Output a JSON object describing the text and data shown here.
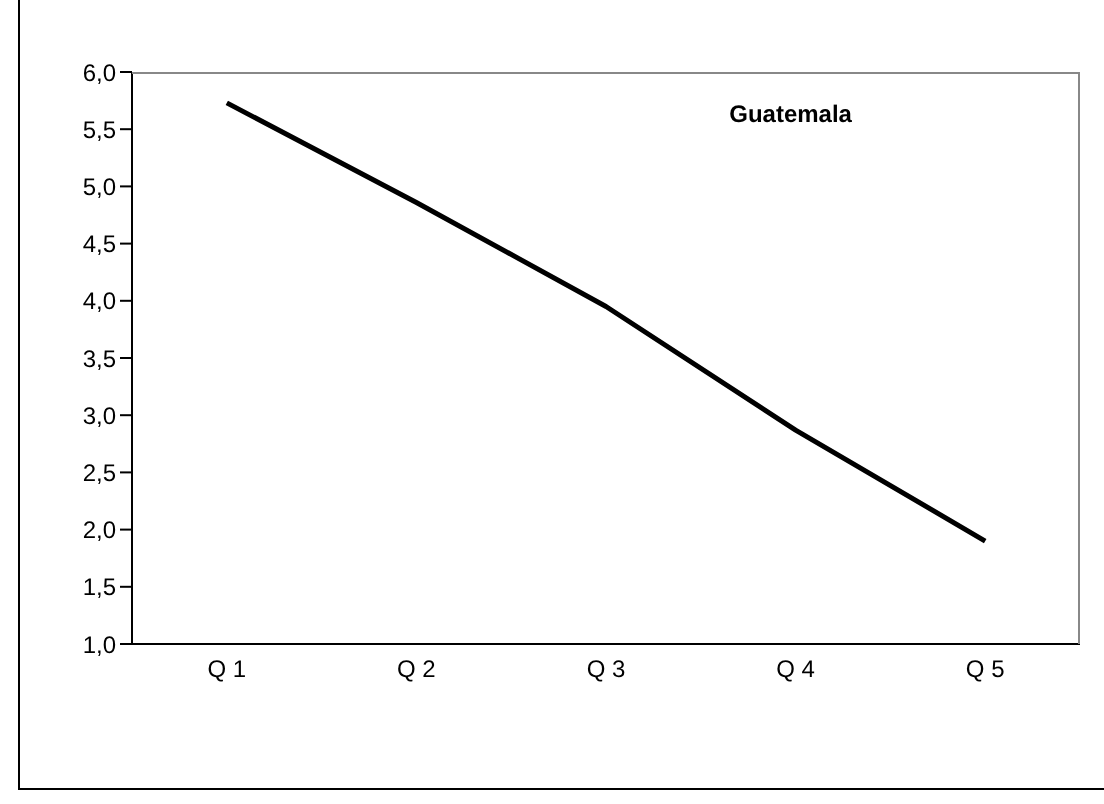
{
  "chart_data": {
    "type": "line",
    "title": "Guatemala",
    "categories": [
      "Q 1",
      "Q 2",
      "Q 3",
      "Q 4",
      "Q 5"
    ],
    "series": [
      {
        "color": "#000000",
        "values": [
          5.73,
          4.86,
          3.95,
          2.87,
          1.9
        ]
      }
    ],
    "ylim": [
      1,
      6
    ],
    "yticks": [
      {
        "value": 1,
        "label": "1,0"
      },
      {
        "value": 1.5,
        "label": "1,5"
      },
      {
        "value": 2,
        "label": "2,0"
      },
      {
        "value": 2.5,
        "label": "2,5"
      },
      {
        "value": 3,
        "label": "3,0"
      },
      {
        "value": 3.5,
        "label": "3,5"
      },
      {
        "value": 4,
        "label": "4,0"
      },
      {
        "value": 4.5,
        "label": "4,5"
      },
      {
        "value": 5,
        "label": "5,0"
      },
      {
        "value": 5.5,
        "label": "5,5"
      },
      {
        "value": 6,
        "label": "6,0"
      }
    ],
    "grid": false,
    "marker": "none",
    "line_style": "solid"
  }
}
